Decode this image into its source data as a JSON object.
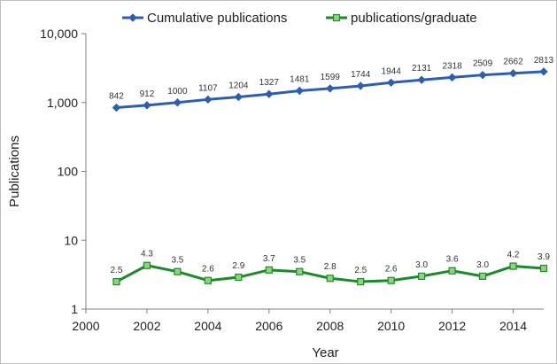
{
  "chart_data": {
    "type": "line",
    "title": "",
    "xlabel": "Year",
    "ylabel": "Publications",
    "yscale": "log",
    "xlim": [
      2000,
      2015
    ],
    "ylim": [
      1,
      10000
    ],
    "x_ticks": [
      2000,
      2002,
      2004,
      2006,
      2008,
      2010,
      2012,
      2014
    ],
    "x_tick_labels": [
      "2000",
      "2002",
      "2004",
      "2006",
      "2008",
      "2010",
      "2012",
      "2014"
    ],
    "y_ticks": [
      1,
      10,
      100,
      1000,
      10000
    ],
    "y_tick_labels": [
      "1",
      "10",
      "100",
      "1,000",
      "10,000"
    ],
    "grid": false,
    "legend_position": "top",
    "x": [
      2001,
      2002,
      2003,
      2004,
      2005,
      2006,
      2007,
      2008,
      2009,
      2010,
      2011,
      2012,
      2013,
      2014,
      2015
    ],
    "series": [
      {
        "name": "Cumulative publications",
        "color": "#2e5fad",
        "marker": "diamond",
        "values": [
          842,
          912,
          1000,
          1107,
          1204,
          1327,
          1481,
          1599,
          1744,
          1944,
          2131,
          2318,
          2509,
          2662,
          2813
        ],
        "labels": [
          "842",
          "912",
          "1000",
          "1107",
          "1204",
          "1327",
          "1481",
          "1599",
          "1744",
          "1944",
          "2131",
          "2318",
          "2509",
          "2662",
          "2813"
        ]
      },
      {
        "name": "publications/graduate",
        "color": "#1d8a2a",
        "marker_fill": "#8fd47c",
        "marker": "square",
        "values": [
          2.5,
          4.3,
          3.5,
          2.6,
          2.9,
          3.7,
          3.5,
          2.8,
          2.5,
          2.6,
          3.0,
          3.6,
          3.0,
          4.2,
          3.9
        ],
        "labels": [
          "2.5",
          "4.3",
          "3.5",
          "2.6",
          "2.9",
          "3.7",
          "3.5",
          "2.8",
          "2.5",
          "2.6",
          "3.0",
          "3.6",
          "3.0",
          "4.2",
          "3.9"
        ]
      }
    ]
  }
}
